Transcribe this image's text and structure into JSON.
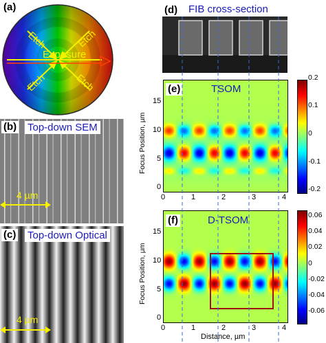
{
  "panel_a": {
    "tag": "(a)",
    "exposure": "Exposure",
    "etch_labels": [
      "Etch",
      "Etch",
      "Etch",
      "Etch"
    ]
  },
  "panel_b": {
    "tag": "(b)",
    "title": "Top-down SEM",
    "scale": "4 µm"
  },
  "panel_c": {
    "tag": "(c)",
    "title": "Top-down Optical",
    "scale": "4 µm"
  },
  "panel_d": {
    "tag": "(d)",
    "title": "FIB cross-section"
  },
  "panel_e": {
    "tag": "(e)",
    "title": "TSOM",
    "ylabel": "Focus Position, µm",
    "yticks": [
      "15",
      "10",
      "5",
      "0"
    ],
    "xticks": [
      "0",
      "1",
      "2",
      "3",
      "4"
    ],
    "colorbar": [
      "0.2",
      "0.1",
      "0",
      "-0.1",
      "-0.2"
    ]
  },
  "panel_f": {
    "tag": "(f)",
    "title": "D-TSOM",
    "ylabel": "Focus Position, µm",
    "xlabel": "Distance, µm",
    "yticks": [
      "15",
      "10",
      "5",
      "0"
    ],
    "xticks": [
      "0",
      "1",
      "2",
      "3",
      "4"
    ],
    "colorbar": [
      "0.06",
      "0.04",
      "0.02",
      "0",
      "-0.02",
      "-0.04",
      "-0.06"
    ]
  },
  "colors": {
    "label_blue": "#1a1ab8",
    "arrow_yellow": "#f5f000",
    "box_red": "#a01010"
  }
}
